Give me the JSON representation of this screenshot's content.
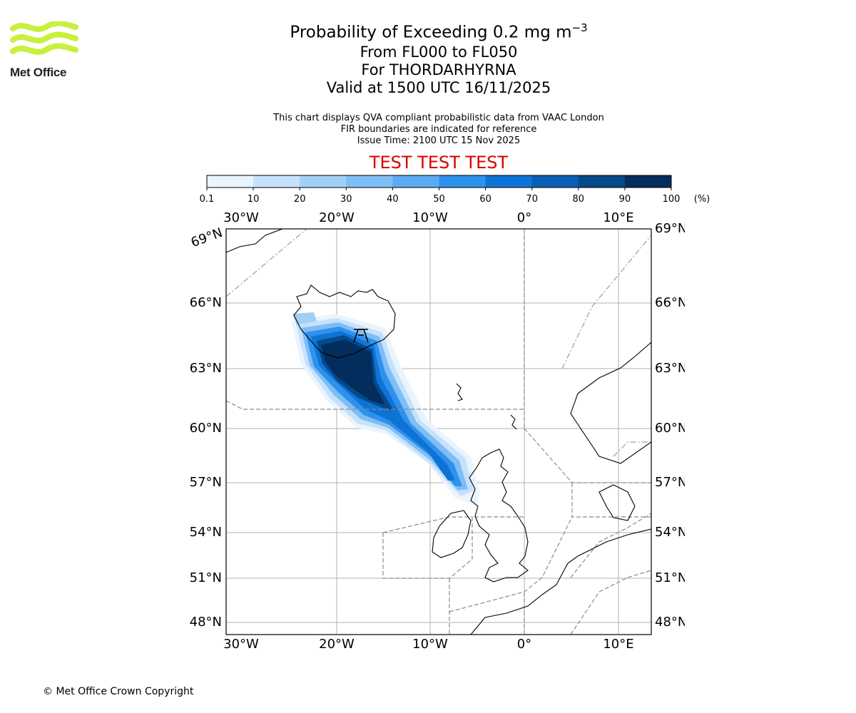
{
  "header": {
    "logo_text": "Met Office",
    "logo_colors": {
      "waves": "#c8f03c",
      "text": "#222222"
    },
    "title_prefix": "Probability of Exceeding 0.2 mg m",
    "title_exponent": "−3",
    "flight_levels": "From FL000 to FL050",
    "volcano": "For THORDARHYRNA",
    "valid_time": "Valid at 1500 UTC 16/11/2025",
    "description": "This chart displays QVA compliant probabilistic data from VAAC London",
    "fir_note": "FIR boundaries are indicated for reference",
    "issue_time": "Issue Time: 2100 UTC 15 Nov 2025",
    "test_banner": "TEST TEST TEST",
    "test_color": "#dd0000"
  },
  "colorbar": {
    "ticks": [
      "0.1",
      "10",
      "20",
      "30",
      "40",
      "50",
      "60",
      "70",
      "80",
      "90",
      "100"
    ],
    "unit": "(%)",
    "colors": [
      "#eaf4fe",
      "#c6e2fb",
      "#a2cff8",
      "#7fbdf5",
      "#5aabf2",
      "#2e91ec",
      "#0d74d6",
      "#085fb3",
      "#06498a",
      "#032d5c"
    ]
  },
  "map": {
    "top_lon_labels": [
      "30°W",
      "20°W",
      "10°W",
      "0°",
      "10°E"
    ],
    "bottom_lon_labels": [
      "30°W",
      "20°W",
      "10°W",
      "0°",
      "10°E"
    ],
    "left_lat_labels": [
      "69°N",
      "66°N",
      "63°N",
      "60°N",
      "57°N",
      "54°N",
      "51°N",
      "48°N"
    ],
    "right_lat_labels": [
      "69°N",
      "66°N",
      "63°N",
      "60°N",
      "57°N",
      "54°N",
      "51°N",
      "48°N"
    ]
  },
  "footer": {
    "copyright": "© Met Office Crown Copyright"
  }
}
